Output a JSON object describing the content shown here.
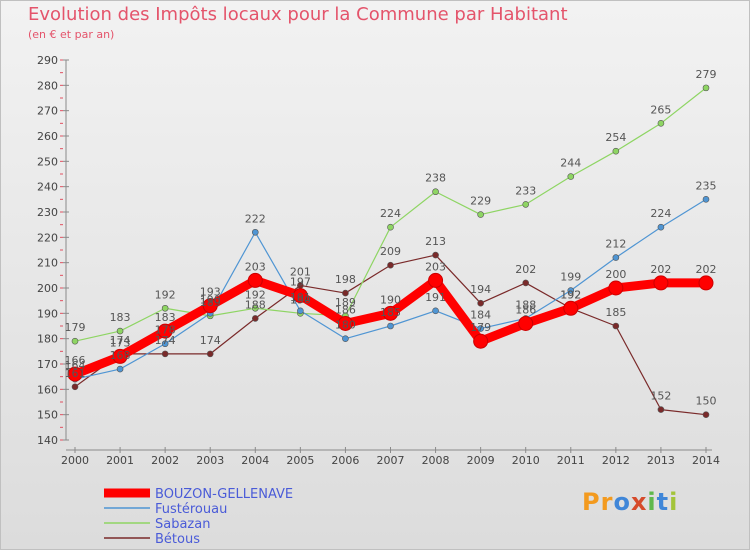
{
  "chart_data": {
    "type": "line",
    "title": "Evolution des Impôts locaux pour la Commune par Habitant",
    "subtitle": "(en € et par an)",
    "x": [
      "2000",
      "2001",
      "2002",
      "2003",
      "2004",
      "2005",
      "2006",
      "2007",
      "2008",
      "2009",
      "2010",
      "2011",
      "2012",
      "2013",
      "2014"
    ],
    "ylim": [
      140,
      290
    ],
    "yticks": [
      140,
      150,
      160,
      170,
      180,
      190,
      200,
      210,
      220,
      230,
      240,
      250,
      260,
      270,
      280,
      290
    ],
    "grid": false,
    "legend_position": "bottom-left",
    "series": [
      {
        "name": "BOUZON-GELLENAVE",
        "color": "#ff0000",
        "values": [
          166,
          173,
          183,
          193,
          203,
          197,
          186,
          190,
          203,
          179,
          186,
          192,
          200,
          202,
          202
        ]
      },
      {
        "name": "Fustérouau",
        "color": "#4f95d3",
        "values": [
          164,
          168,
          178,
          190,
          222,
          191,
          180,
          185,
          191,
          184,
          188,
          199,
          212,
          224,
          235
        ]
      },
      {
        "name": "Sabazan",
        "color": "#8ed563",
        "values": [
          179,
          183,
          192,
          189,
          192,
          190,
          189,
          224,
          238,
          229,
          233,
          244,
          254,
          265,
          279
        ]
      },
      {
        "name": "Bétous",
        "color": "#7a2a2a",
        "values": [
          161,
          174,
          174,
          174,
          188,
          201,
          198,
          209,
          213,
          194,
          202,
          192,
          185,
          152,
          150
        ]
      }
    ]
  },
  "logo": {
    "letters": [
      "P",
      "r",
      "o",
      "x",
      "i",
      "t",
      "i"
    ],
    "colors": [
      "#f39a1e",
      "#f39a1e",
      "#3f86d8",
      "#d64a2a",
      "#5fb84c",
      "#3f86d8",
      "#a3c43a"
    ]
  }
}
